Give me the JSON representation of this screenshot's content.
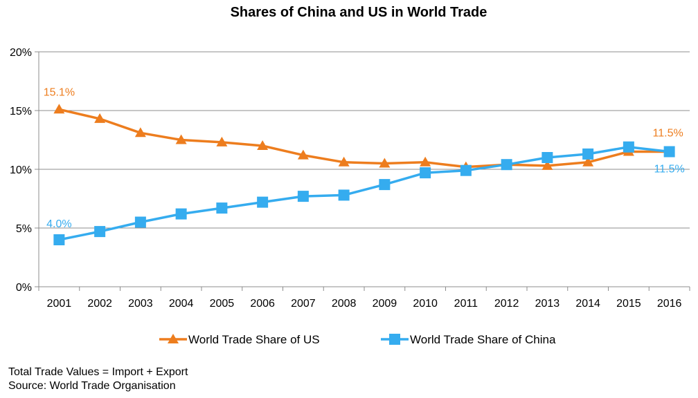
{
  "chart_data": {
    "type": "line",
    "title": "Shares of China and US in World Trade",
    "xlabel": "",
    "ylabel": "",
    "x": [
      "2001",
      "2002",
      "2003",
      "2004",
      "2005",
      "2006",
      "2007",
      "2008",
      "2009",
      "2010",
      "2011",
      "2012",
      "2013",
      "2014",
      "2015",
      "2016"
    ],
    "ylim": [
      0,
      20
    ],
    "yticks": [
      "0%",
      "5%",
      "10%",
      "15%",
      "20%"
    ],
    "grid": true,
    "legend_position": "bottom",
    "series": [
      {
        "name": "World Trade Share of US",
        "color": "#ED7D1E",
        "marker": "triangle",
        "values": [
          15.1,
          14.3,
          13.1,
          12.5,
          12.3,
          12.0,
          11.2,
          10.6,
          10.5,
          10.6,
          10.2,
          10.4,
          10.3,
          10.6,
          11.5,
          11.5
        ],
        "data_labels": [
          {
            "index": 0,
            "text": "15.1%"
          },
          {
            "index": 15,
            "text": "11.5%"
          }
        ]
      },
      {
        "name": "World Trade Share of China",
        "color": "#35ACEF",
        "marker": "square",
        "values": [
          4.0,
          4.7,
          5.5,
          6.2,
          6.7,
          7.2,
          7.7,
          7.8,
          8.7,
          9.7,
          9.9,
          10.4,
          11.0,
          11.3,
          11.9,
          11.5
        ],
        "data_labels": [
          {
            "index": 0,
            "text": "4.0%"
          },
          {
            "index": 15,
            "text": "11.5%"
          }
        ]
      }
    ]
  },
  "footnotes": {
    "line1": "Total Trade Values = Import + Export",
    "line2": "Source: World Trade Organisation"
  }
}
